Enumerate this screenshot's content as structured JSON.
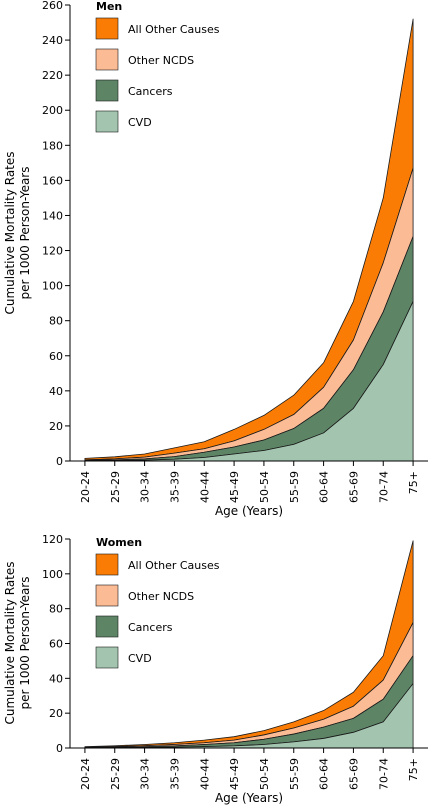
{
  "colors": {
    "cvd": "#a3c5af",
    "cancers": "#5e8466",
    "other_ncds": "#fbbb95",
    "other_causes": "#fb7c05",
    "outline": "#1a1a1a"
  },
  "chart_data": [
    {
      "type": "area",
      "stacked": true,
      "panel": "men",
      "legend_title": "Men",
      "legend_position": "top-left",
      "grid": false,
      "xlabel": "Age (Years)",
      "ylabel_line1": "Cumulative Mortality Rates",
      "ylabel_line2": "per 1000 Person-Years",
      "ylim": [
        0,
        260
      ],
      "yticks": [
        0,
        20,
        40,
        60,
        80,
        100,
        120,
        140,
        160,
        180,
        200,
        220,
        240,
        260
      ],
      "categories": [
        "20-24",
        "25-29",
        "30-34",
        "35-39",
        "40-44",
        "45-49",
        "50-54",
        "55-59",
        "60-64",
        "65-69",
        "70-74",
        "75+"
      ],
      "series": [
        {
          "name": "CVD",
          "values": [
            0.1,
            0.2,
            0.5,
            1.0,
            2.0,
            4.0,
            6.0,
            9.5,
            16.0,
            30.0,
            55.0,
            91.0
          ]
        },
        {
          "name": "Cancers",
          "values": [
            0.2,
            0.4,
            0.7,
            1.5,
            3.0,
            4.0,
            6.0,
            9.0,
            14.0,
            22.0,
            30.0,
            37.0
          ]
        },
        {
          "name": "Other NCDS",
          "values": [
            0.3,
            0.6,
            1.0,
            2.0,
            2.0,
            3.5,
            6.0,
            8.0,
            12.0,
            17.0,
            28.0,
            39.0
          ]
        },
        {
          "name": "All Other Causes",
          "values": [
            0.9,
            1.2,
            1.8,
            3.0,
            4.0,
            6.5,
            8.0,
            11.0,
            14.0,
            22.0,
            37.0,
            85.0
          ]
        }
      ]
    },
    {
      "type": "area",
      "stacked": true,
      "panel": "women",
      "legend_title": "Women",
      "legend_position": "top-left",
      "grid": false,
      "xlabel": "Age (Years)",
      "ylabel_line1": "Cumulative Mortality Rates",
      "ylabel_line2": "per 1000 Person-Years",
      "ylim": [
        0,
        120
      ],
      "yticks": [
        0,
        20,
        40,
        60,
        80,
        100,
        120
      ],
      "categories": [
        "20-24",
        "25-29",
        "30-34",
        "35-39",
        "40-44",
        "45-49",
        "50-54",
        "55-59",
        "60-64",
        "65-69",
        "70-74",
        "75+"
      ],
      "series": [
        {
          "name": "CVD",
          "values": [
            0.1,
            0.2,
            0.3,
            0.5,
            0.8,
            1.2,
            2.0,
            3.5,
            5.5,
            9.0,
            15.0,
            37.0
          ]
        },
        {
          "name": "Cancers",
          "values": [
            0.1,
            0.2,
            0.4,
            0.7,
            1.2,
            1.8,
            3.0,
            4.5,
            6.5,
            8.0,
            13.0,
            16.0
          ]
        },
        {
          "name": "Other NCDS",
          "values": [
            0.2,
            0.4,
            0.6,
            0.8,
            1.0,
            1.5,
            2.5,
            3.5,
            4.5,
            7.0,
            11.0,
            19.0
          ]
        },
        {
          "name": "All Other Causes",
          "values": [
            0.4,
            0.5,
            0.7,
            1.0,
            1.5,
            2.0,
            2.5,
            3.5,
            5.0,
            8.0,
            14.0,
            47.0
          ]
        }
      ]
    }
  ]
}
